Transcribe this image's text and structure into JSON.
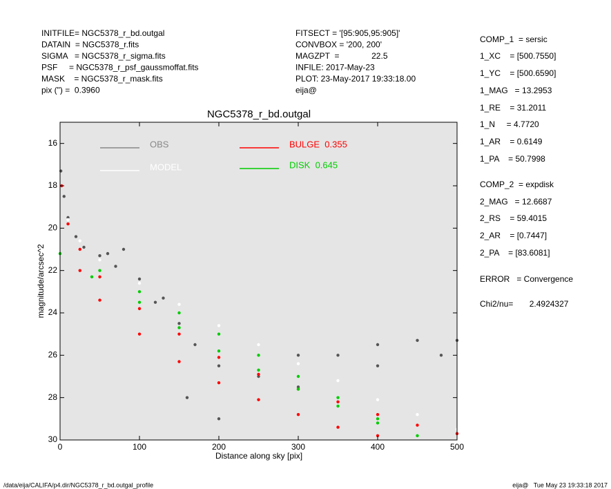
{
  "header": {
    "left": [
      "INITFILE= NGC5378_r_bd.outgal",
      "DATAIN  = NGC5378_r.fits",
      "SIGMA   = NGC5378_r_sigma.fits",
      "PSF     = NGC5378_r_psf_gaussmoffat.fits",
      "MASK    = NGC5378_r_mask.fits",
      "pix (\") =  0.3960"
    ],
    "middle": [
      "FITSECT = '[95:905,95:905]'",
      "CONVBOX = '200, 200'",
      "MAGZPT  =              22.5",
      "INFILE: 2017-May-23",
      "PLOT: 23-May-2017 19:33:18.00",
      "eija@"
    ],
    "right": [
      "COMP_1  = sersic",
      "1_XC    = [500.7550]",
      "1_YC    = [500.6590]",
      "1_MAG   = 13.2953",
      "1_RE    = 31.2011",
      "1_N     = 4.7720",
      "1_AR    = 0.6149",
      "1_PA    = 50.7998",
      "COMP_2  = expdisk",
      "2_MAG   = 12.6687",
      "2_RS    = 59.4015",
      "2_AR    = [0.7447]",
      "2_PA    = [83.6081]",
      "ERROR   = Convergence",
      "Chi2/nu=       2.4924327"
    ]
  },
  "footer": {
    "left": "/data/eija/CALIFA/p4.dir/NGC5378_r_bd.outgal_profile",
    "right": "eija@   Tue May 23 19:33:18 2017"
  },
  "chart_data": {
    "type": "scatter",
    "title": "NGC5378_r_bd.outgal",
    "x_label": "Distance along sky [pix]",
    "y_label": "magnitude/arcsec^2",
    "xlim": [
      0,
      500
    ],
    "xticks": [
      0,
      100,
      200,
      300,
      400,
      500
    ],
    "ylim": [
      15,
      30
    ],
    "y_inverted": true,
    "yticks": [
      16,
      18,
      20,
      22,
      24,
      26,
      28,
      30
    ],
    "series": [
      {
        "name": "OBS",
        "color": "#555555",
        "legend_color": "#888888",
        "x": [
          1,
          5,
          10,
          20,
          30,
          50,
          60,
          70,
          80,
          100,
          120,
          130,
          150,
          160,
          170,
          200,
          200,
          250,
          300,
          300,
          350,
          400,
          400,
          450,
          480,
          500
        ],
        "y": [
          17.3,
          18.5,
          19.5,
          20.4,
          20.9,
          21.3,
          21.2,
          21.8,
          21.0,
          22.4,
          23.5,
          23.3,
          24.5,
          28.0,
          25.5,
          26.5,
          29.0,
          27.0,
          27.5,
          26.0,
          26.0,
          25.5,
          26.5,
          25.3,
          26.0,
          25.3
        ]
      },
      {
        "name": "MODEL",
        "color": "#ffffff",
        "legend_color": "#ffffff",
        "x": [
          2,
          10,
          25,
          50,
          100,
          150,
          200,
          250,
          300,
          350,
          400,
          450,
          500
        ],
        "y": [
          18.0,
          19.6,
          20.6,
          21.5,
          22.6,
          23.6,
          24.6,
          25.5,
          26.4,
          27.2,
          28.1,
          28.8,
          29.5
        ]
      },
      {
        "name": "BULGE  0.355",
        "color": "#ff0000",
        "legend_color": "#ff0000",
        "x": [
          2,
          10,
          25,
          50,
          100,
          150,
          200,
          250,
          300,
          350,
          400,
          450,
          500,
          25,
          50,
          100,
          150,
          200,
          250,
          300,
          350,
          400
        ],
        "y": [
          18.0,
          19.8,
          21.0,
          22.3,
          23.8,
          25.0,
          26.1,
          26.9,
          27.6,
          28.2,
          28.8,
          29.3,
          29.7,
          22.0,
          23.4,
          25.0,
          26.3,
          27.3,
          28.1,
          28.8,
          29.4,
          29.8
        ]
      },
      {
        "name": "DISK  0.645",
        "color": "#00cc00",
        "legend_color": "#00cc00",
        "x": [
          0,
          50,
          100,
          150,
          200,
          250,
          300,
          350,
          400,
          450,
          40,
          100,
          150,
          200,
          250,
          300,
          350,
          400
        ],
        "y": [
          21.2,
          22.0,
          23.0,
          24.0,
          25.0,
          26.0,
          27.0,
          28.0,
          29.0,
          29.8,
          22.3,
          23.5,
          24.7,
          25.8,
          26.7,
          27.6,
          28.4,
          29.2
        ]
      }
    ]
  }
}
